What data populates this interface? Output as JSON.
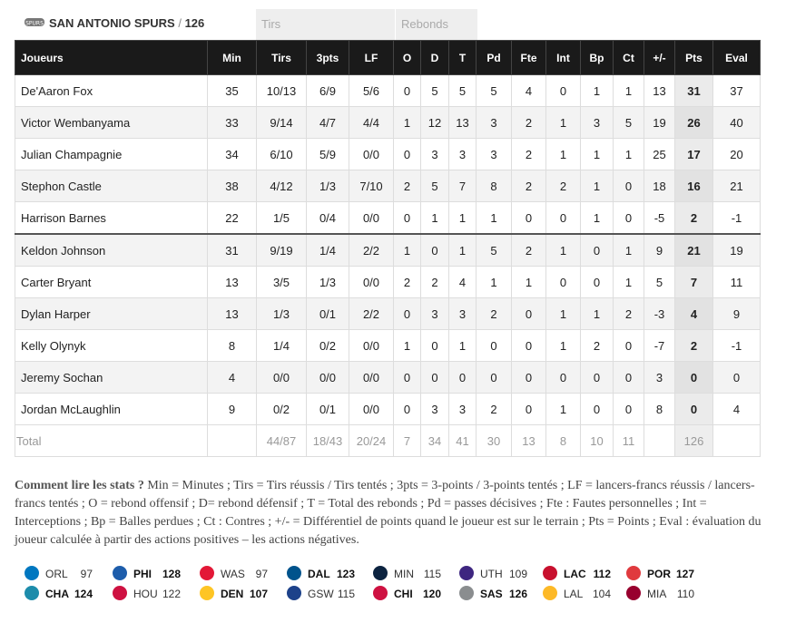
{
  "team": {
    "name": "SAN ANTONIO SPURS",
    "sep": "/",
    "score": "126",
    "logo_icon": "spurs-logo-icon"
  },
  "groups": {
    "shots": "Tirs",
    "rebounds": "Rebonds"
  },
  "columns": [
    "Joueurs",
    "Min",
    "Tirs",
    "3pts",
    "LF",
    "O",
    "D",
    "T",
    "Pd",
    "Fte",
    "Int",
    "Bp",
    "Ct",
    "+/-",
    "Pts",
    "Eval"
  ],
  "players": [
    [
      "De'Aaron Fox",
      "35",
      "10/13",
      "6/9",
      "5/6",
      "0",
      "5",
      "5",
      "5",
      "4",
      "0",
      "1",
      "1",
      "13",
      "31",
      "37"
    ],
    [
      "Victor Wembanyama",
      "33",
      "9/14",
      "4/7",
      "4/4",
      "1",
      "12",
      "13",
      "3",
      "2",
      "1",
      "3",
      "5",
      "19",
      "26",
      "40"
    ],
    [
      "Julian Champagnie",
      "34",
      "6/10",
      "5/9",
      "0/0",
      "0",
      "3",
      "3",
      "3",
      "2",
      "1",
      "1",
      "1",
      "25",
      "17",
      "20"
    ],
    [
      "Stephon Castle",
      "38",
      "4/12",
      "1/3",
      "7/10",
      "2",
      "5",
      "7",
      "8",
      "2",
      "2",
      "1",
      "0",
      "18",
      "16",
      "21"
    ],
    [
      "Harrison Barnes",
      "22",
      "1/5",
      "0/4",
      "0/0",
      "0",
      "1",
      "1",
      "1",
      "0",
      "0",
      "1",
      "0",
      "-5",
      "2",
      "-1"
    ],
    [
      "Keldon Johnson",
      "31",
      "9/19",
      "1/4",
      "2/2",
      "1",
      "0",
      "1",
      "5",
      "2",
      "1",
      "0",
      "1",
      "9",
      "21",
      "19"
    ],
    [
      "Carter Bryant",
      "13",
      "3/5",
      "1/3",
      "0/0",
      "2",
      "2",
      "4",
      "1",
      "1",
      "0",
      "0",
      "1",
      "5",
      "7",
      "11"
    ],
    [
      "Dylan Harper",
      "13",
      "1/3",
      "0/1",
      "2/2",
      "0",
      "3",
      "3",
      "2",
      "0",
      "1",
      "1",
      "2",
      "-3",
      "4",
      "9"
    ],
    [
      "Kelly Olynyk",
      "8",
      "1/4",
      "0/2",
      "0/0",
      "1",
      "0",
      "1",
      "0",
      "0",
      "1",
      "2",
      "0",
      "-7",
      "2",
      "-1"
    ],
    [
      "Jeremy Sochan",
      "4",
      "0/0",
      "0/0",
      "0/0",
      "0",
      "0",
      "0",
      "0",
      "0",
      "0",
      "0",
      "0",
      "3",
      "0",
      "0"
    ],
    [
      "Jordan McLaughlin",
      "9",
      "0/2",
      "0/1",
      "0/0",
      "0",
      "3",
      "3",
      "2",
      "0",
      "1",
      "0",
      "0",
      "8",
      "0",
      "4"
    ]
  ],
  "totals": [
    "Total",
    "",
    "44/87",
    "18/43",
    "20/24",
    "7",
    "34",
    "41",
    "30",
    "13",
    "8",
    "10",
    "11",
    "",
    "126",
    ""
  ],
  "legend": {
    "title": "Comment lire les stats ?",
    "text": " Min = Minutes ; Tirs = Tirs réussis / Tirs tentés ; 3pts = 3-points / 3-points tentés ; LF = lancers-francs réussis / lancers-francs tentés ; O = rebond offensif ; D= rebond défensif ; T = Total des rebonds ; Pd = passes décisives ; Fte : Fautes personnelles ; Int = Interceptions ; Bp = Balles perdues ; Ct : Contres ; +/- = Différentiel de points quand le joueur est sur le terrain ; Pts = Points ; Eval : évaluation du joueur calculée à partir des actions positives – les actions négatives."
  },
  "scoreboard": [
    {
      "top": {
        "abbr": "ORL",
        "score": "97",
        "win": false,
        "icon": "magic-logo-icon",
        "color": "#0077c0"
      },
      "bottom": {
        "abbr": "CHA",
        "score": "124",
        "win": true,
        "icon": "hornets-logo-icon",
        "color": "#1d8cab"
      }
    },
    {
      "top": {
        "abbr": "PHI",
        "score": "128",
        "win": true,
        "icon": "sixers-logo-icon",
        "color": "#1d5dab"
      },
      "bottom": {
        "abbr": "HOU",
        "score": "122",
        "win": false,
        "icon": "rockets-logo-icon",
        "color": "#ce1141"
      }
    },
    {
      "top": {
        "abbr": "WAS",
        "score": "97",
        "win": false,
        "icon": "wizards-logo-icon",
        "color": "#e31837"
      },
      "bottom": {
        "abbr": "DEN",
        "score": "107",
        "win": true,
        "icon": "nuggets-logo-icon",
        "color": "#fec524"
      }
    },
    {
      "top": {
        "abbr": "DAL",
        "score": "123",
        "win": true,
        "icon": "mavericks-logo-icon",
        "color": "#00538c"
      },
      "bottom": {
        "abbr": "GSW",
        "score": "115",
        "win": false,
        "icon": "warriors-logo-icon",
        "color": "#1d428a"
      }
    },
    {
      "top": {
        "abbr": "MIN",
        "score": "115",
        "win": false,
        "icon": "timberwolves-logo-icon",
        "color": "#0c2340"
      },
      "bottom": {
        "abbr": "CHI",
        "score": "120",
        "win": true,
        "icon": "bulls-logo-icon",
        "color": "#ce1141"
      }
    },
    {
      "top": {
        "abbr": "UTH",
        "score": "109",
        "win": false,
        "icon": "jazz-logo-icon",
        "color": "#3e2680"
      },
      "bottom": {
        "abbr": "SAS",
        "score": "126",
        "win": true,
        "icon": "spurs-logo-icon",
        "color": "#8a8d8f"
      }
    },
    {
      "top": {
        "abbr": "LAC",
        "score": "112",
        "win": true,
        "icon": "clippers-logo-icon",
        "color": "#c8102e"
      },
      "bottom": {
        "abbr": "LAL",
        "score": "104",
        "win": false,
        "icon": "lakers-logo-icon",
        "color": "#fdb927"
      }
    },
    {
      "top": {
        "abbr": "POR",
        "score": "127",
        "win": true,
        "icon": "blazers-logo-icon",
        "color": "#e03a3e"
      },
      "bottom": {
        "abbr": "MIA",
        "score": "110",
        "win": false,
        "icon": "heat-logo-icon",
        "color": "#98002e"
      }
    }
  ]
}
